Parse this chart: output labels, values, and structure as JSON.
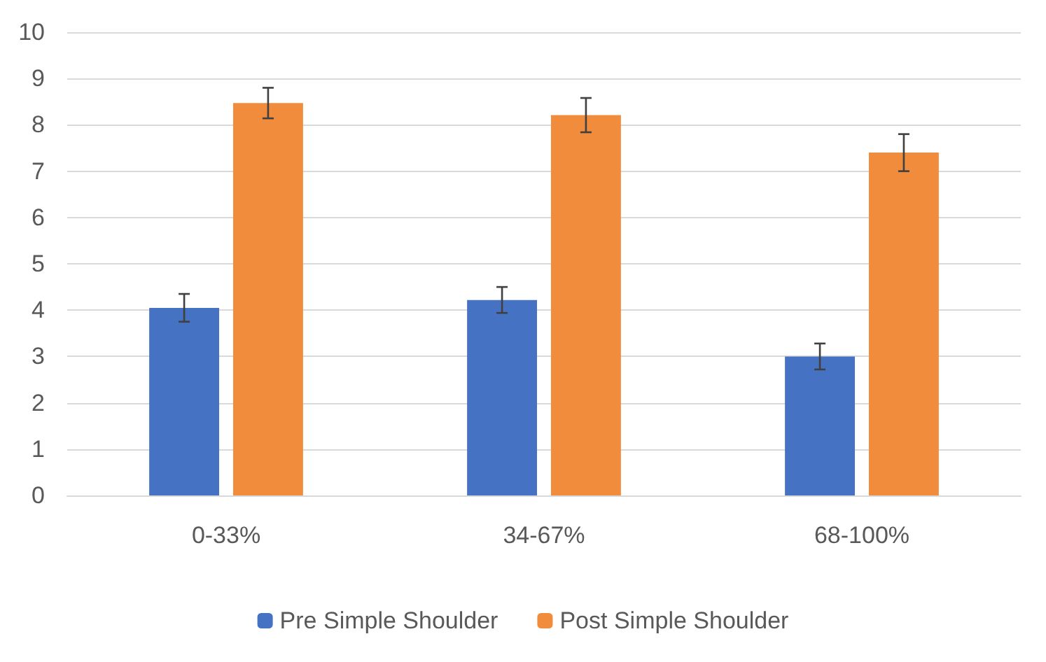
{
  "chart_data": {
    "type": "bar",
    "categories": [
      "0-33%",
      "34-67%",
      "68-100%"
    ],
    "series": [
      {
        "name": "Pre Simple Shoulder",
        "color": "#4672c4",
        "values": [
          4.05,
          4.22,
          3.0
        ],
        "errors": [
          0.3,
          0.28,
          0.28
        ]
      },
      {
        "name": "Post Simple Shoulder",
        "color": "#f08c3c",
        "values": [
          8.47,
          8.21,
          7.4
        ],
        "errors": [
          0.33,
          0.37,
          0.4
        ]
      }
    ],
    "ylim": [
      0,
      10
    ],
    "yticks": [
      0,
      1,
      2,
      3,
      4,
      5,
      6,
      7,
      8,
      9,
      10
    ],
    "grid": "y",
    "legend": "bottom"
  }
}
